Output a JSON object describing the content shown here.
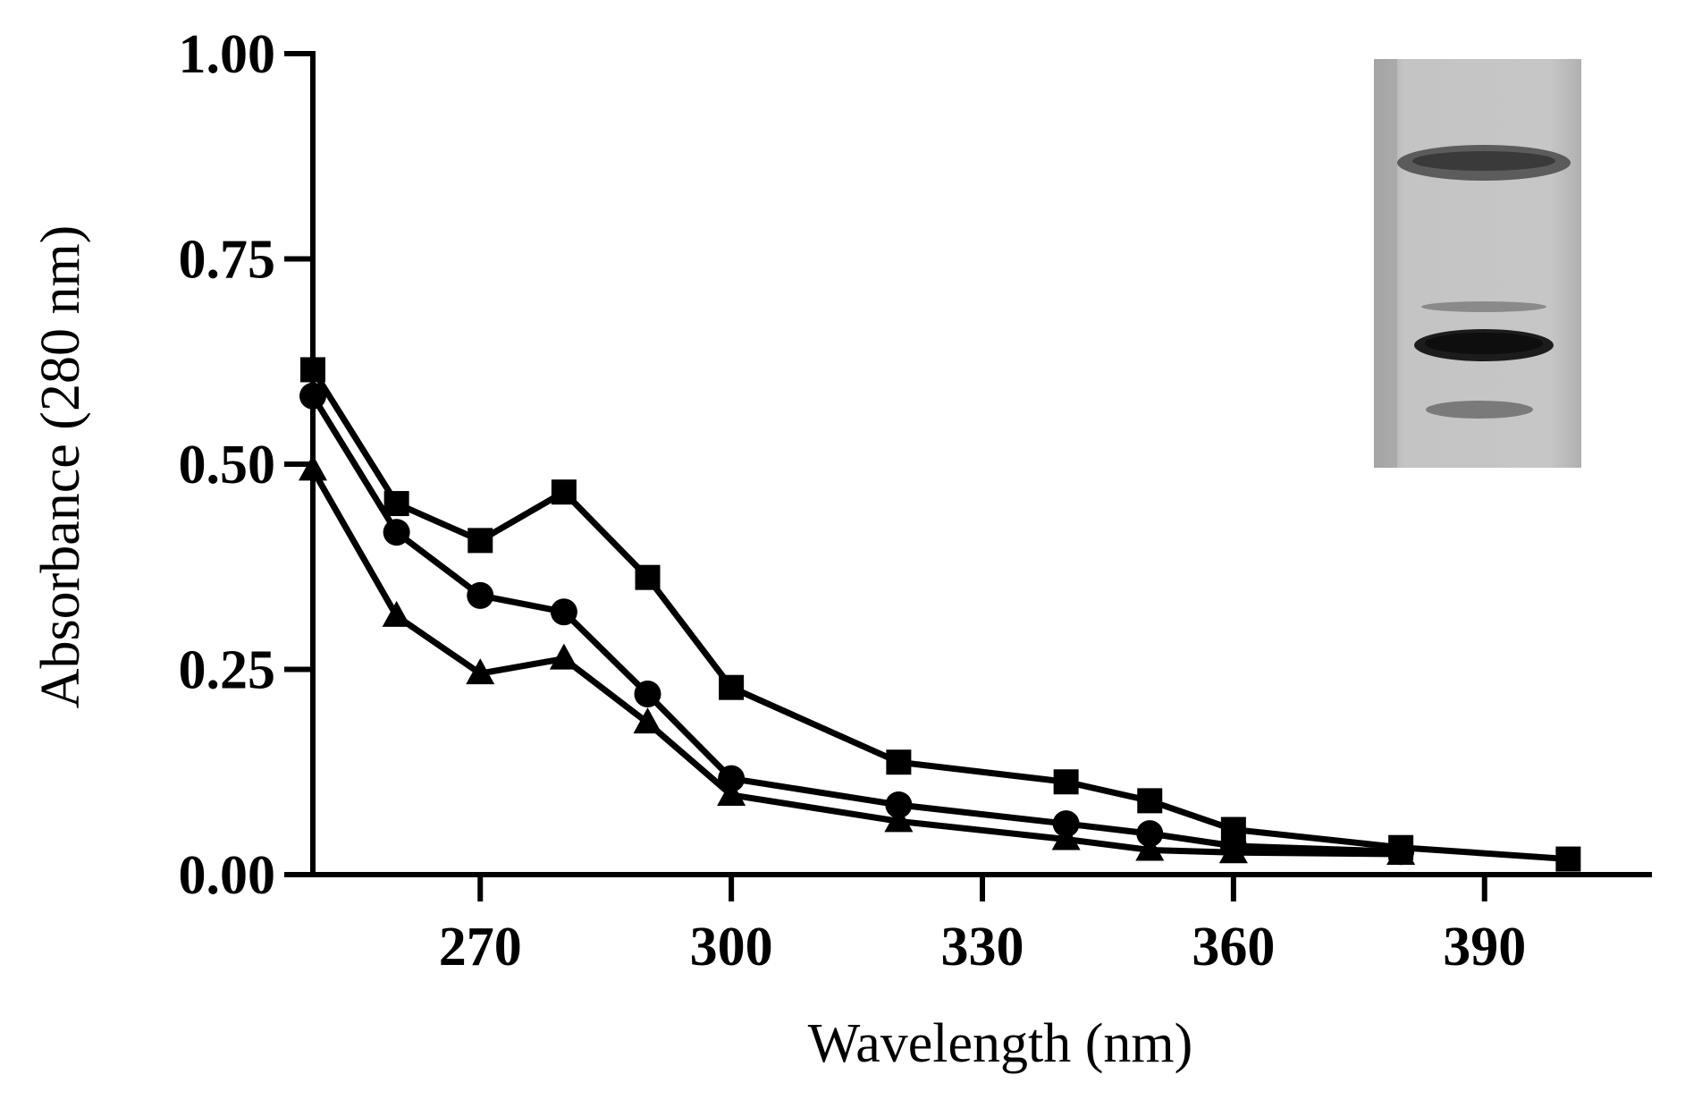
{
  "chart_data": {
    "type": "line",
    "title": "",
    "xlabel": "Wavelength (nm)",
    "ylabel": "Absorbance (280 nm)",
    "xlim": [
      250,
      410
    ],
    "ylim": [
      0,
      1
    ],
    "xticks": [
      270,
      300,
      330,
      360,
      390
    ],
    "xtick_labels": [
      "270",
      "300",
      "330",
      "360",
      "390"
    ],
    "yticks": [
      0,
      0.25,
      0.5,
      0.75,
      1.0
    ],
    "ytick_labels": [
      "0.00",
      "0.25",
      "0.50",
      "0.75",
      "1.00"
    ],
    "grid": false,
    "legend": "none",
    "series": [
      {
        "name": "square",
        "marker": "square",
        "x": [
          250,
          260,
          270,
          280,
          290,
          300,
          320,
          340,
          350,
          360,
          380,
          400
        ],
        "values": [
          0.615,
          0.452,
          0.407,
          0.466,
          0.362,
          0.228,
          0.137,
          0.113,
          0.09,
          0.055,
          0.033,
          0.019
        ]
      },
      {
        "name": "circle",
        "marker": "circle",
        "x": [
          250,
          260,
          270,
          280,
          290,
          300,
          320,
          340,
          350,
          360,
          380
        ],
        "values": [
          0.583,
          0.417,
          0.34,
          0.32,
          0.22,
          0.117,
          0.085,
          0.062,
          0.05,
          0.035,
          0.028
        ]
      },
      {
        "name": "triangle",
        "marker": "triangle",
        "x": [
          250,
          260,
          270,
          280,
          290,
          300,
          320,
          340,
          350,
          360,
          380
        ],
        "values": [
          0.493,
          0.315,
          0.245,
          0.263,
          0.185,
          0.097,
          0.065,
          0.043,
          0.03,
          0.027,
          0.025
        ]
      }
    ],
    "inset": "gel-image"
  }
}
